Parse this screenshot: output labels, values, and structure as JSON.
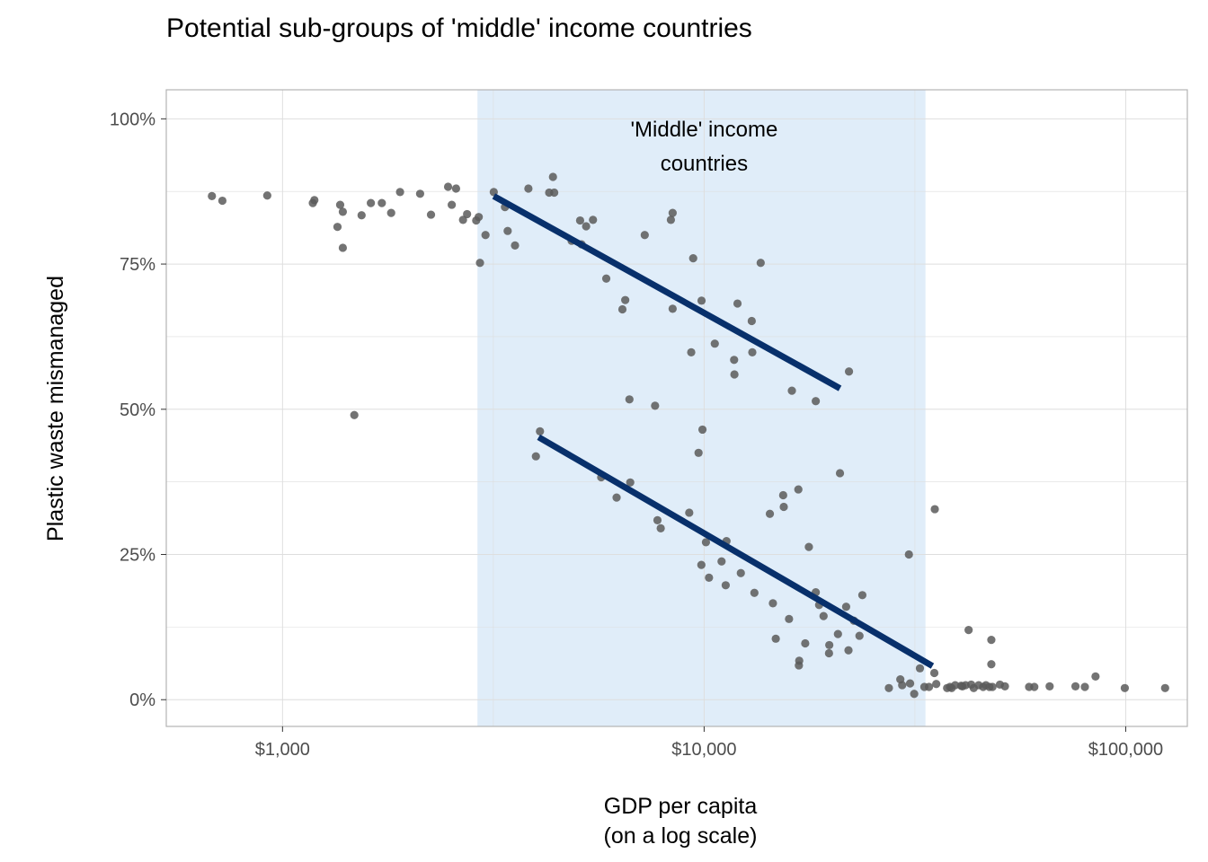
{
  "chart_data": {
    "type": "scatter",
    "title": "Potential sub-groups of 'middle' income countries",
    "xlabel": [
      "GDP per capita",
      "(on a log scale)"
    ],
    "ylabel": "Plastic waste mismanaged",
    "x_scale": "log10",
    "xlim": [
      530,
      140000
    ],
    "ylim": [
      -0.046,
      1.05
    ],
    "x_ticks": [
      {
        "value": 1000,
        "label": "$1,000"
      },
      {
        "value": 10000,
        "label": "$10,000"
      },
      {
        "value": 100000,
        "label": "$100,000"
      }
    ],
    "y_ticks": [
      {
        "value": 0,
        "label": "0%"
      },
      {
        "value": 0.25,
        "label": "25%"
      },
      {
        "value": 0.5,
        "label": "50%"
      },
      {
        "value": 0.75,
        "label": "75%"
      },
      {
        "value": 1.0,
        "label": "100%"
      }
    ],
    "grid": true,
    "highlight_band": {
      "x": [
        2900,
        33500
      ],
      "color": "#e0edf9"
    },
    "annotation": {
      "lines": [
        "'Middle' income",
        "countries"
      ],
      "x": 10000,
      "y": 0.97
    },
    "colors": {
      "points": "#5a5a5a",
      "trend": "#08306b",
      "grid": "#dedede",
      "border": "#b3b3b3"
    },
    "points": [
      [
        680,
        0.867
      ],
      [
        720,
        0.859
      ],
      [
        920,
        0.868
      ],
      [
        1180,
        0.855
      ],
      [
        1190,
        0.86
      ],
      [
        1350,
        0.814
      ],
      [
        1370,
        0.852
      ],
      [
        1390,
        0.84
      ],
      [
        1390,
        0.778
      ],
      [
        1480,
        0.49
      ],
      [
        1540,
        0.834
      ],
      [
        1620,
        0.855
      ],
      [
        1720,
        0.855
      ],
      [
        1810,
        0.838
      ],
      [
        1900,
        0.874
      ],
      [
        2120,
        0.871
      ],
      [
        2250,
        0.835
      ],
      [
        2470,
        0.883
      ],
      [
        2520,
        0.852
      ],
      [
        2580,
        0.88
      ],
      [
        2680,
        0.826
      ],
      [
        2740,
        0.836
      ],
      [
        2880,
        0.825
      ],
      [
        2920,
        0.831
      ],
      [
        2940,
        0.752
      ],
      [
        3030,
        0.8
      ],
      [
        3170,
        0.874
      ],
      [
        3370,
        0.848
      ],
      [
        3420,
        0.807
      ],
      [
        3560,
        0.782
      ],
      [
        3830,
        0.88
      ],
      [
        3990,
        0.419
      ],
      [
        4080,
        0.462
      ],
      [
        4290,
        0.873
      ],
      [
        4380,
        0.9
      ],
      [
        4410,
        0.873
      ],
      [
        4850,
        0.79
      ],
      [
        5080,
        0.825
      ],
      [
        5120,
        0.784
      ],
      [
        5250,
        0.815
      ],
      [
        5450,
        0.826
      ],
      [
        5700,
        0.383
      ],
      [
        5860,
        0.725
      ],
      [
        6200,
        0.348
      ],
      [
        6400,
        0.672
      ],
      [
        6500,
        0.688
      ],
      [
        6650,
        0.517
      ],
      [
        6680,
        0.374
      ],
      [
        7230,
        0.8
      ],
      [
        7650,
        0.506
      ],
      [
        7750,
        0.309
      ],
      [
        7890,
        0.295
      ],
      [
        8340,
        0.826
      ],
      [
        8420,
        0.838
      ],
      [
        8420,
        0.673
      ],
      [
        9220,
        0.322
      ],
      [
        9420,
        0.76
      ],
      [
        9320,
        0.598
      ],
      [
        9700,
        0.425
      ],
      [
        9860,
        0.687
      ],
      [
        9910,
        0.465
      ],
      [
        9850,
        0.232
      ],
      [
        10100,
        0.271
      ],
      [
        10270,
        0.21
      ],
      [
        10600,
        0.613
      ],
      [
        11000,
        0.238
      ],
      [
        11300,
        0.273
      ],
      [
        11250,
        0.197
      ],
      [
        11780,
        0.585
      ],
      [
        11800,
        0.56
      ],
      [
        12000,
        0.682
      ],
      [
        12220,
        0.218
      ],
      [
        12970,
        0.652
      ],
      [
        13010,
        0.598
      ],
      [
        13160,
        0.184
      ],
      [
        13620,
        0.752
      ],
      [
        14320,
        0.32
      ],
      [
        14560,
        0.166
      ],
      [
        14790,
        0.105
      ],
      [
        15400,
        0.352
      ],
      [
        15450,
        0.332
      ],
      [
        15900,
        0.139
      ],
      [
        16150,
        0.532
      ],
      [
        16730,
        0.362
      ],
      [
        16810,
        0.067
      ],
      [
        16780,
        0.059
      ],
      [
        17370,
        0.097
      ],
      [
        17720,
        0.263
      ],
      [
        18400,
        0.514
      ],
      [
        18400,
        0.185
      ],
      [
        18740,
        0.163
      ],
      [
        19200,
        0.144
      ],
      [
        19780,
        0.08
      ],
      [
        19810,
        0.094
      ],
      [
        20770,
        0.113
      ],
      [
        21000,
        0.39
      ],
      [
        21720,
        0.16
      ],
      [
        22060,
        0.565
      ],
      [
        22000,
        0.085
      ],
      [
        22660,
        0.136
      ],
      [
        23360,
        0.11
      ],
      [
        23730,
        0.18
      ],
      [
        27430,
        0.02
      ],
      [
        29200,
        0.035
      ],
      [
        29500,
        0.025
      ],
      [
        30600,
        0.25
      ],
      [
        30800,
        0.028
      ],
      [
        31500,
        0.01
      ],
      [
        32500,
        0.054
      ],
      [
        33300,
        0.022
      ],
      [
        34150,
        0.022
      ],
      [
        35160,
        0.046
      ],
      [
        35250,
        0.328
      ],
      [
        35530,
        0.027
      ],
      [
        37700,
        0.02
      ],
      [
        38300,
        0.022
      ],
      [
        38650,
        0.02
      ],
      [
        39400,
        0.025
      ],
      [
        40700,
        0.024
      ],
      [
        41000,
        0.023
      ],
      [
        41700,
        0.025
      ],
      [
        42400,
        0.12
      ],
      [
        43000,
        0.026
      ],
      [
        43600,
        0.02
      ],
      [
        44800,
        0.025
      ],
      [
        45900,
        0.022
      ],
      [
        46600,
        0.025
      ],
      [
        47500,
        0.022
      ],
      [
        48000,
        0.103
      ],
      [
        48000,
        0.061
      ],
      [
        48300,
        0.022
      ],
      [
        50300,
        0.026
      ],
      [
        51700,
        0.023
      ],
      [
        59000,
        0.022
      ],
      [
        60700,
        0.022
      ],
      [
        66000,
        0.023
      ],
      [
        76000,
        0.023
      ],
      [
        80000,
        0.022
      ],
      [
        84800,
        0.04
      ],
      [
        99500,
        0.02
      ],
      [
        124000,
        0.02
      ]
    ],
    "trend_lines": [
      {
        "x": [
          3170,
          21000
        ],
        "y": [
          0.867,
          0.536
        ]
      },
      {
        "x": [
          4050,
          34800
        ],
        "y": [
          0.452,
          0.058
        ]
      }
    ]
  }
}
